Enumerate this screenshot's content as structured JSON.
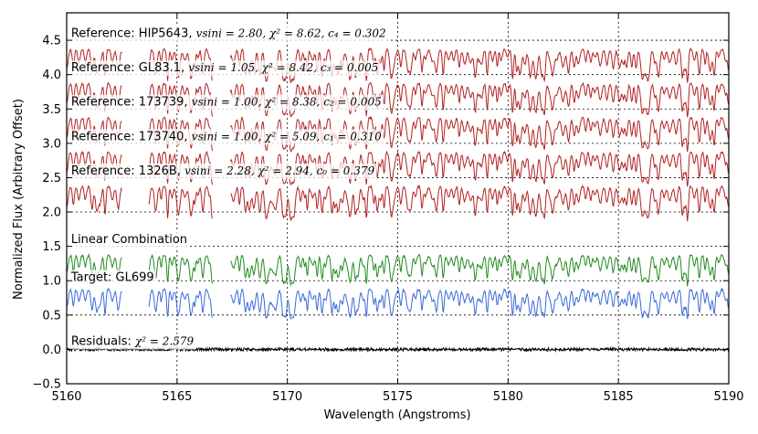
{
  "chart_data": {
    "type": "line",
    "title": "",
    "xlabel": "Wavelength (Angstroms)",
    "ylabel": "Normalized Flux (Arbitrary Offset)",
    "xlim": [
      5160,
      5190
    ],
    "ylim": [
      -0.5,
      4.9
    ],
    "xticks": [
      5160,
      5165,
      5170,
      5175,
      5180,
      5185,
      5190
    ],
    "yticks": [
      -0.5,
      0.0,
      0.5,
      1.0,
      1.5,
      2.0,
      2.5,
      3.0,
      3.5,
      4.0,
      4.5
    ],
    "ytick_labels": [
      "−0.5",
      "0.0",
      "0.5",
      "1.0",
      "1.5",
      "2.0",
      "2.5",
      "3.0",
      "3.5",
      "4.0",
      "4.5"
    ],
    "grid": true,
    "spectrum_gaps": [
      [
        5162.5,
        5163.7
      ],
      [
        5166.6,
        5167.4
      ]
    ],
    "colors": {
      "reference": "#b22222",
      "combination": "#228b22",
      "target": "#3a6ad9",
      "residuals": "#000000"
    },
    "series": [
      {
        "name": "HIP5643",
        "kind": "reference",
        "baseline": 4.25,
        "depth": 0.45
      },
      {
        "name": "GL83.1",
        "kind": "reference",
        "baseline": 3.75,
        "depth": 0.45
      },
      {
        "name": "173739",
        "kind": "reference",
        "baseline": 3.25,
        "depth": 0.45
      },
      {
        "name": "173740",
        "kind": "reference",
        "baseline": 2.75,
        "depth": 0.45
      },
      {
        "name": "1326B",
        "kind": "reference",
        "baseline": 2.25,
        "depth": 0.45
      },
      {
        "name": "Linear Combination",
        "kind": "combination",
        "baseline": 1.25,
        "depth": 0.4
      },
      {
        "name": "GL699",
        "kind": "target",
        "baseline": 0.75,
        "depth": 0.4
      },
      {
        "name": "Residuals",
        "kind": "residuals",
        "baseline": 0.0,
        "depth": 0.02
      }
    ],
    "annotations": [
      {
        "label": "Reference: HIP5643, ",
        "stats": "vsini = 2.80,  χ² = 8.62,  c₄ = 0.302",
        "x": 5160.2,
        "y": 4.6
      },
      {
        "label": "Reference: GL83.1, ",
        "stats": "vsini = 1.05,  χ² = 8.42,  c₃ = 0.005",
        "x": 5160.2,
        "y": 4.1
      },
      {
        "label": "Reference: 173739, ",
        "stats": "vsini = 1.00,  χ² = 8.38,  c₂ = 0.005",
        "x": 5160.2,
        "y": 3.6
      },
      {
        "label": "Reference: 173740, ",
        "stats": "vsini = 1.00,  χ² = 5.09,  c₁ = 0.310",
        "x": 5160.2,
        "y": 3.1
      },
      {
        "label": "Reference: 1326B, ",
        "stats": "vsini = 2.28,  χ² = 2.94,  c₀ = 0.379",
        "x": 5160.2,
        "y": 2.6
      },
      {
        "label": "Linear Combination",
        "stats": "",
        "x": 5160.2,
        "y": 1.6
      },
      {
        "label": "Target: GL699",
        "stats": "",
        "x": 5160.2,
        "y": 1.05
      },
      {
        "label": "Residuals: ",
        "stats": "χ² = 2.579",
        "x": 5160.2,
        "y": 0.12
      }
    ]
  }
}
